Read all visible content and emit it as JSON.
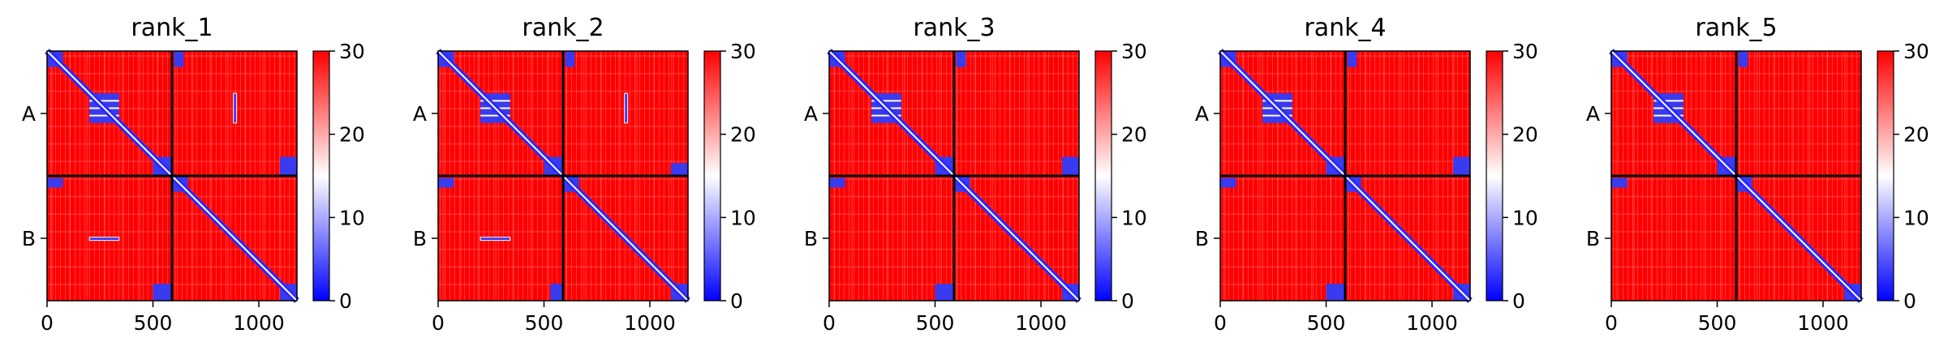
{
  "chart_data": {
    "type": "heatmap",
    "panels": [
      {
        "title": "rank_1",
        "interchain_contacts": [
          [
            200,
            340,
            880,
            895
          ],
          [
            880,
            895,
            200,
            340
          ]
        ],
        "ab_off_block_contacts": [
          [
            0,
            75,
            600,
            645
          ],
          [
            600,
            645,
            0,
            75
          ],
          [
            500,
            585,
            1100,
            1180
          ],
          [
            1100,
            1180,
            500,
            585
          ]
        ]
      },
      {
        "title": "rank_2",
        "interchain_contacts": [
          [
            200,
            340,
            880,
            895
          ],
          [
            880,
            895,
            200,
            340
          ]
        ],
        "ab_off_block_contacts": [
          [
            0,
            75,
            600,
            645
          ],
          [
            600,
            645,
            0,
            75
          ],
          [
            530,
            585,
            1100,
            1180
          ],
          [
            1100,
            1180,
            530,
            585
          ]
        ]
      },
      {
        "title": "rank_3",
        "interchain_contacts": [],
        "ab_off_block_contacts": [
          [
            0,
            75,
            600,
            645
          ],
          [
            600,
            645,
            0,
            75
          ],
          [
            500,
            585,
            1100,
            1180
          ],
          [
            1100,
            1180,
            500,
            585
          ]
        ]
      },
      {
        "title": "rank_4",
        "interchain_contacts": [],
        "ab_off_block_contacts": [
          [
            0,
            75,
            600,
            645
          ],
          [
            600,
            645,
            0,
            75
          ],
          [
            500,
            585,
            1100,
            1180
          ],
          [
            1100,
            1180,
            500,
            585
          ]
        ]
      },
      {
        "title": "rank_5",
        "interchain_contacts": [],
        "ab_off_block_contacts": [
          [
            0,
            75,
            600,
            645
          ],
          [
            600,
            645,
            0,
            75
          ]
        ]
      }
    ],
    "x_ticks": [
      0,
      500,
      1000
    ],
    "x_tick_labels": [
      "0",
      "500",
      "1000"
    ],
    "y_tick_labels": [
      "A",
      "B"
    ],
    "chain_boundary": 590,
    "length": 1180,
    "domain_blocks": [
      [
        0,
        75
      ],
      [
        200,
        340
      ],
      [
        500,
        585
      ],
      [
        590,
        665
      ],
      [
        1100,
        1180
      ]
    ],
    "colorbar": {
      "min": 0,
      "max": 30,
      "ticks": [
        0,
        10,
        20,
        30
      ],
      "tick_labels": [
        "0",
        "10",
        "20",
        "30"
      ],
      "colormap": "bwr"
    },
    "colors": {
      "high": "#ff0000",
      "mid": "#ffffff",
      "low": "#0000ff",
      "contact_fill": "#3a3aee",
      "line": "#000000"
    },
    "grid": false
  }
}
